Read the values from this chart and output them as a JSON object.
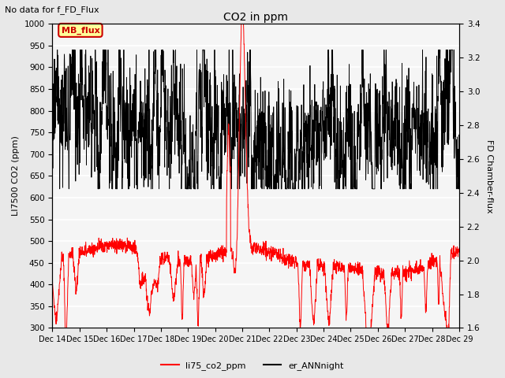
{
  "title": "CO2 in ppm",
  "suptitle": "No data for f_FD_Flux",
  "ylabel_left": "LI7500 CO2 (ppm)",
  "ylabel_right": "FD Chamber-flux",
  "ylim_left": [
    300,
    1000
  ],
  "ylim_right": [
    1.6,
    3.4
  ],
  "yticks_left": [
    300,
    350,
    400,
    450,
    500,
    550,
    600,
    650,
    700,
    750,
    800,
    850,
    900,
    950,
    1000
  ],
  "yticks_right": [
    1.6,
    1.8,
    2.0,
    2.2,
    2.4,
    2.6,
    2.8,
    3.0,
    3.2,
    3.4
  ],
  "xticklabels": [
    "Dec 14",
    "Dec 15",
    "Dec 16",
    "Dec 17",
    "Dec 18",
    "Dec 19",
    "Dec 20",
    "Dec 21",
    "Dec 22",
    "Dec 23",
    "Dec 24",
    "Dec 25",
    "Dec 26",
    "Dec 27",
    "Dec 28",
    "Dec 29"
  ],
  "legend_label_red": "li75_co2_ppm",
  "legend_label_black": "er_ANNnight",
  "box_label": "MB_flux",
  "box_color": "#ffff99",
  "box_border": "#cc0000",
  "line_color_red": "#ff0000",
  "line_color_black": "#000000",
  "background_color": "#e8e8e8",
  "plot_background": "#f5f5f5",
  "grid_color": "#ffffff",
  "n_points": 2000,
  "random_seed": 7
}
